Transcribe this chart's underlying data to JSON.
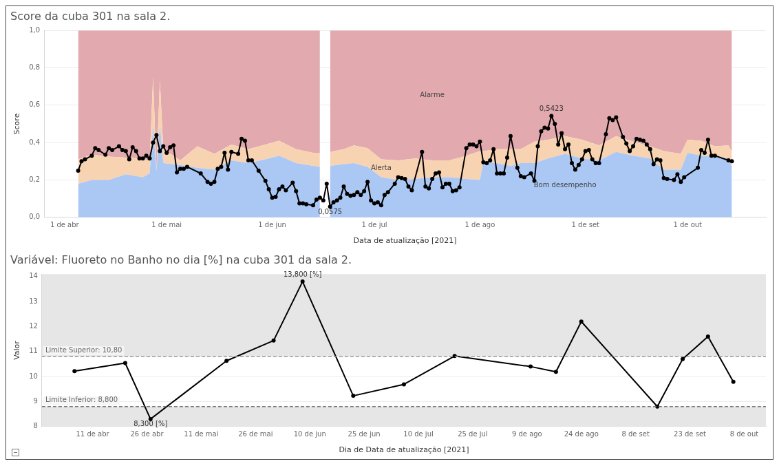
{
  "chart_data": [
    {
      "type": "area",
      "stacked": true,
      "title": "Score da cuba 301 na sala 2.",
      "xlabel": "Data de atualização [2021]",
      "ylabel": "Score",
      "xlim": [
        "2021-03-26",
        "2021-10-24"
      ],
      "xticks": [
        {
          "value": "2021-04-01",
          "label": "1 de abr"
        },
        {
          "value": "2021-05-01",
          "label": "1 de mai"
        },
        {
          "value": "2021-06-01",
          "label": "1 de jun"
        },
        {
          "value": "2021-07-01",
          "label": "1 de jul"
        },
        {
          "value": "2021-08-01",
          "label": "1 de ago"
        },
        {
          "value": "2021-09-01",
          "label": "1 de set"
        },
        {
          "value": "2021-10-01",
          "label": "1 de out"
        }
      ],
      "ylim": [
        0,
        1
      ],
      "yticks": [
        {
          "value": 0,
          "label": "0,0"
        },
        {
          "value": 0.2,
          "label": "0,2"
        },
        {
          "value": 0.4,
          "label": "0,4"
        },
        {
          "value": 0.6,
          "label": "0,6"
        },
        {
          "value": 0.8,
          "label": "0,8"
        },
        {
          "value": 1,
          "label": "1,0"
        }
      ],
      "grid": "y",
      "annotations": [
        {
          "text": "0,5423",
          "x": "2021-08-22",
          "y": 0.5423
        },
        {
          "text": "0,0575",
          "x": "2021-06-18",
          "y": 0.0575
        }
      ],
      "series": [
        {
          "name": "Bom desempenho",
          "color": "#abc7f4",
          "x": [
            "2021-04-05",
            "2021-04-09",
            "2021-04-14",
            "2021-04-19",
            "2021-04-24",
            "2021-04-26",
            "2021-04-27",
            "2021-04-28",
            "2021-04-29",
            "2021-04-30",
            "2021-05-05",
            "2021-05-10",
            "2021-05-15",
            "2021-05-20",
            "2021-05-25",
            "2021-05-30",
            "2021-06-03",
            "2021-06-08",
            "2021-06-13",
            "2021-06-15",
            "2021-06-17",
            "2021-06-18",
            "2021-06-22",
            "2021-06-25",
            "2021-06-29",
            "2021-07-03",
            "2021-07-08",
            "2021-07-13",
            "2021-07-18",
            "2021-07-23",
            "2021-07-28",
            "2021-08-01",
            "2021-08-02",
            "2021-08-06",
            "2021-08-10",
            "2021-08-13",
            "2021-08-17",
            "2021-08-21",
            "2021-08-26",
            "2021-08-31",
            "2021-09-05",
            "2021-09-10",
            "2021-09-15",
            "2021-09-20",
            "2021-09-24",
            "2021-09-29",
            "2021-10-01",
            "2021-10-05",
            "2021-10-09",
            "2021-10-13",
            "2021-10-14"
          ],
          "values": [
            0.18,
            0.2,
            0.2,
            0.23,
            0.215,
            0.235,
            0.49,
            0.25,
            0.5,
            0.29,
            0.28,
            0.265,
            0.255,
            0.305,
            0.29,
            0.31,
            0.33,
            0.29,
            0.275,
            0.27,
            null,
            0.275,
            0.285,
            0.29,
            0.27,
            0.215,
            0.2,
            0.205,
            0.215,
            0.215,
            0.205,
            0.2,
            0.3,
            0.29,
            0.275,
            0.29,
            0.29,
            0.315,
            0.34,
            0.315,
            0.305,
            0.35,
            0.33,
            0.315,
            0.255,
            0.255,
            0.345,
            0.33,
            0.325,
            0.315,
            0.27
          ]
        },
        {
          "name": "Alerta",
          "color": "#f8d3b2",
          "x": [
            "2021-04-05",
            "2021-04-09",
            "2021-04-14",
            "2021-04-19",
            "2021-04-24",
            "2021-04-26",
            "2021-04-27",
            "2021-04-28",
            "2021-04-29",
            "2021-04-30",
            "2021-05-05",
            "2021-05-10",
            "2021-05-15",
            "2021-05-20",
            "2021-05-25",
            "2021-05-30",
            "2021-06-03",
            "2021-06-08",
            "2021-06-13",
            "2021-06-15",
            "2021-06-17",
            "2021-06-18",
            "2021-06-22",
            "2021-06-25",
            "2021-06-29",
            "2021-07-03",
            "2021-07-08",
            "2021-07-13",
            "2021-07-18",
            "2021-07-23",
            "2021-07-28",
            "2021-08-01",
            "2021-08-02",
            "2021-08-06",
            "2021-08-10",
            "2021-08-13",
            "2021-08-17",
            "2021-08-21",
            "2021-08-26",
            "2021-08-31",
            "2021-09-05",
            "2021-09-10",
            "2021-09-15",
            "2021-09-20",
            "2021-09-24",
            "2021-09-29",
            "2021-10-01",
            "2021-10-05",
            "2021-10-09",
            "2021-10-13",
            "2021-10-14"
          ],
          "values": [
            0.13,
            0.135,
            0.125,
            0.09,
            0.1,
            0.065,
            0.26,
            0,
            0.235,
            0.075,
            0.025,
            0.115,
            0.085,
            0.085,
            0.075,
            0.08,
            0.08,
            0.075,
            0.07,
            0.075,
            null,
            0.075,
            0.08,
            0.095,
            0.1,
            0.095,
            0.105,
            0.11,
            0.09,
            0.09,
            0.125,
            0.155,
            0.055,
            0.075,
            0.09,
            0.075,
            0.115,
            0.1,
            0.095,
            0.1,
            0.08,
            0.085,
            0.075,
            0.065,
            0.1,
            0.085,
            0.07,
            0.08,
            0.055,
            0.07,
            0.08
          ]
        },
        {
          "name": "Alarme",
          "color": "#e2a9ae",
          "x": [
            "2021-04-05",
            "2021-04-09",
            "2021-04-14",
            "2021-04-19",
            "2021-04-24",
            "2021-04-26",
            "2021-04-27",
            "2021-04-28",
            "2021-04-29",
            "2021-04-30",
            "2021-05-05",
            "2021-05-10",
            "2021-05-15",
            "2021-05-20",
            "2021-05-25",
            "2021-05-30",
            "2021-06-03",
            "2021-06-08",
            "2021-06-13",
            "2021-06-15",
            "2021-06-17",
            "2021-06-18",
            "2021-06-22",
            "2021-06-25",
            "2021-06-29",
            "2021-07-03",
            "2021-07-08",
            "2021-07-13",
            "2021-07-18",
            "2021-07-23",
            "2021-07-28",
            "2021-08-01",
            "2021-08-02",
            "2021-08-06",
            "2021-08-10",
            "2021-08-13",
            "2021-08-17",
            "2021-08-21",
            "2021-08-26",
            "2021-08-31",
            "2021-09-05",
            "2021-09-10",
            "2021-09-15",
            "2021-09-20",
            "2021-09-24",
            "2021-09-29",
            "2021-10-01",
            "2021-10-05",
            "2021-10-09",
            "2021-10-13",
            "2021-10-14"
          ],
          "values": [
            0.69,
            0.665,
            0.675,
            0.68,
            0.685,
            0.7,
            0.25,
            0.75,
            0.265,
            0.635,
            0.695,
            0.62,
            0.66,
            0.61,
            0.635,
            0.61,
            0.59,
            0.635,
            0.655,
            0.655,
            null,
            0.65,
            0.635,
            0.615,
            0.63,
            0.69,
            0.695,
            0.685,
            0.695,
            0.695,
            0.67,
            0.645,
            0.645,
            0.635,
            0.635,
            0.635,
            0.595,
            0.585,
            0.565,
            0.585,
            0.615,
            0.565,
            0.595,
            0.62,
            0.645,
            0.66,
            0.585,
            0.59,
            0.62,
            0.615,
            0.65
          ]
        },
        {
          "type": "line",
          "color": "#000000",
          "marker": "circle",
          "x": [
            "2021-04-05",
            "2021-04-06",
            "2021-04-07",
            "2021-04-09",
            "2021-04-10",
            "2021-04-11",
            "2021-04-13",
            "2021-04-14",
            "2021-04-15",
            "2021-04-17",
            "2021-04-18",
            "2021-04-19",
            "2021-04-20",
            "2021-04-21",
            "2021-04-22",
            "2021-04-23",
            "2021-04-24",
            "2021-04-25",
            "2021-04-26",
            "2021-04-27",
            "2021-04-28",
            "2021-04-29",
            "2021-04-30",
            "2021-05-01",
            "2021-05-02",
            "2021-05-03",
            "2021-05-04",
            "2021-05-05",
            "2021-05-06",
            "2021-05-07",
            "2021-05-11",
            "2021-05-13",
            "2021-05-14",
            "2021-05-15",
            "2021-05-16",
            "2021-05-17",
            "2021-05-18",
            "2021-05-19",
            "2021-05-20",
            "2021-05-22",
            "2021-05-23",
            "2021-05-24",
            "2021-05-25",
            "2021-05-26",
            "2021-05-28",
            "2021-05-30",
            "2021-05-31",
            "2021-06-01",
            "2021-06-02",
            "2021-06-03",
            "2021-06-04",
            "2021-06-05",
            "2021-06-07",
            "2021-06-08",
            "2021-06-09",
            "2021-06-10",
            "2021-06-11",
            "2021-06-13",
            "2021-06-14",
            "2021-06-15",
            "2021-06-16",
            "2021-06-17",
            "2021-06-18",
            "2021-06-19",
            "2021-06-20",
            "2021-06-21",
            "2021-06-22",
            "2021-06-23",
            "2021-06-24",
            "2021-06-25",
            "2021-06-26",
            "2021-06-27",
            "2021-06-28",
            "2021-06-29",
            "2021-06-30",
            "2021-07-01",
            "2021-07-02",
            "2021-07-03",
            "2021-07-04",
            "2021-07-05",
            "2021-07-07",
            "2021-07-08",
            "2021-07-09",
            "2021-07-10",
            "2021-07-11",
            "2021-07-12",
            "2021-07-15",
            "2021-07-16",
            "2021-07-17",
            "2021-07-18",
            "2021-07-19",
            "2021-07-20",
            "2021-07-21",
            "2021-07-22",
            "2021-07-23",
            "2021-07-24",
            "2021-07-25",
            "2021-07-26",
            "2021-07-28",
            "2021-07-29",
            "2021-07-30",
            "2021-07-31",
            "2021-08-01",
            "2021-08-02",
            "2021-08-03",
            "2021-08-04",
            "2021-08-05",
            "2021-08-06",
            "2021-08-07",
            "2021-08-08",
            "2021-08-09",
            "2021-08-10",
            "2021-08-12",
            "2021-08-13",
            "2021-08-14",
            "2021-08-16",
            "2021-08-17",
            "2021-08-18",
            "2021-08-19",
            "2021-08-20",
            "2021-08-21",
            "2021-08-22",
            "2021-08-23",
            "2021-08-24",
            "2021-08-25",
            "2021-08-26",
            "2021-08-27",
            "2021-08-28",
            "2021-08-29",
            "2021-08-30",
            "2021-08-31",
            "2021-09-01",
            "2021-09-02",
            "2021-09-03",
            "2021-09-04",
            "2021-09-05",
            "2021-09-07",
            "2021-09-08",
            "2021-09-09",
            "2021-09-10",
            "2021-09-12",
            "2021-09-13",
            "2021-09-14",
            "2021-09-15",
            "2021-09-16",
            "2021-09-17",
            "2021-09-18",
            "2021-09-19",
            "2021-09-20",
            "2021-09-21",
            "2021-09-22",
            "2021-09-23",
            "2021-09-24",
            "2021-09-25",
            "2021-09-27",
            "2021-09-28",
            "2021-09-29",
            "2021-09-30",
            "2021-10-04",
            "2021-10-05",
            "2021-10-06",
            "2021-10-07",
            "2021-10-08",
            "2021-10-09",
            "2021-10-13",
            "2021-10-14"
          ],
          "values": [
            0.25,
            0.3,
            0.31,
            0.33,
            0.37,
            0.36,
            0.335,
            0.37,
            0.36,
            0.38,
            0.36,
            0.355,
            0.31,
            0.375,
            0.355,
            0.315,
            0.315,
            0.33,
            0.315,
            0.4,
            0.44,
            0.355,
            0.38,
            0.345,
            0.375,
            0.385,
            0.24,
            0.26,
            0.26,
            0.27,
            0.235,
            0.19,
            0.18,
            0.19,
            0.26,
            0.27,
            0.345,
            0.255,
            0.35,
            0.34,
            0.42,
            0.41,
            0.305,
            0.305,
            0.25,
            0.195,
            0.15,
            0.105,
            0.11,
            0.15,
            0.165,
            0.145,
            0.185,
            0.14,
            0.075,
            0.075,
            0.07,
            0.065,
            0.095,
            0.105,
            0.09,
            0.18,
            0.0575,
            0.08,
            0.09,
            0.105,
            0.165,
            0.125,
            0.115,
            0.12,
            0.135,
            0.12,
            0.14,
            0.19,
            0.09,
            0.075,
            0.08,
            0.065,
            0.12,
            0.135,
            0.18,
            0.215,
            0.21,
            0.205,
            0.165,
            0.145,
            0.35,
            0.165,
            0.155,
            0.205,
            0.235,
            0.24,
            0.16,
            0.18,
            0.18,
            0.14,
            0.145,
            0.16,
            0.37,
            0.39,
            0.39,
            0.38,
            0.405,
            0.295,
            0.29,
            0.305,
            0.365,
            0.235,
            0.235,
            0.235,
            0.32,
            0.435,
            0.265,
            0.22,
            0.215,
            0.235,
            0.195,
            0.38,
            0.46,
            0.48,
            0.475,
            0.5423,
            0.5,
            0.39,
            0.45,
            0.365,
            0.39,
            0.29,
            0.255,
            0.28,
            0.31,
            0.355,
            0.36,
            0.31,
            0.29,
            0.29,
            0.445,
            0.53,
            0.52,
            0.535,
            0.43,
            0.395,
            0.355,
            0.38,
            0.42,
            0.415,
            0.41,
            0.39,
            0.365,
            0.285,
            0.31,
            0.305,
            0.21,
            0.205,
            0.2,
            0.23,
            0.19,
            0.215,
            0.265,
            0.36,
            0.345,
            0.415,
            0.33,
            0.33,
            0.305,
            0.3
          ]
        }
      ]
    },
    {
      "type": "line",
      "title": "Variável: Fluoreto no Banho no dia [%] na cuba 301 da sala 2.",
      "xlabel": "Dia de Data de atualização [2021]",
      "ylabel": "Valor",
      "color": "#000000",
      "marker": "circle",
      "grid": "y",
      "x": [
        "2021-04-06",
        "2021-04-20",
        "2021-04-27",
        "2021-05-18",
        "2021-05-31",
        "2021-06-08",
        "2021-06-22",
        "2021-07-06",
        "2021-07-20",
        "2021-08-10",
        "2021-08-17",
        "2021-08-24",
        "2021-09-14",
        "2021-09-21",
        "2021-09-28",
        "2021-10-05"
      ],
      "values": [
        10.22,
        10.54,
        8.3,
        10.63,
        11.44,
        13.8,
        9.23,
        9.69,
        10.82,
        10.4,
        10.19,
        12.2,
        8.8,
        10.7,
        11.6,
        9.79
      ],
      "xlim": [
        "2021-03-28",
        "2021-10-14"
      ],
      "xticks": [
        {
          "value": "2021-04-11",
          "label": "11 de abr"
        },
        {
          "value": "2021-04-26",
          "label": "26 de abr"
        },
        {
          "value": "2021-05-11",
          "label": "11 de mai"
        },
        {
          "value": "2021-05-26",
          "label": "26 de mai"
        },
        {
          "value": "2021-06-10",
          "label": "10 de jun"
        },
        {
          "value": "2021-06-25",
          "label": "25 de jun"
        },
        {
          "value": "2021-07-10",
          "label": "10 de jul"
        },
        {
          "value": "2021-07-25",
          "label": "25 de jul"
        },
        {
          "value": "2021-08-09",
          "label": "9 de ago"
        },
        {
          "value": "2021-08-24",
          "label": "24 de ago"
        },
        {
          "value": "2021-09-08",
          "label": "8 de set"
        },
        {
          "value": "2021-09-23",
          "label": "23 de set"
        },
        {
          "value": "2021-10-08",
          "label": "8 de out"
        }
      ],
      "ylim": [
        8,
        14.1
      ],
      "yticks": [
        8,
        9,
        10,
        11,
        12,
        13,
        14
      ],
      "bands": [
        {
          "axis": "y",
          "from": 10.8,
          "to": 14.1,
          "color": "#e6e6e6"
        },
        {
          "axis": "y",
          "from": 8,
          "to": 8.8,
          "color": "#e6e6e6"
        }
      ],
      "ref_lines": [
        {
          "axis": "y",
          "value": 10.8,
          "label": "Limite Superior: 10,80",
          "color": "#999999",
          "line_style": "dashed"
        },
        {
          "axis": "y",
          "value": 8.8,
          "label": "Limite Inferior: 8,800",
          "color": "#777777",
          "line_style": "dashed"
        }
      ],
      "annotations": [
        {
          "text": "13,800 [%]",
          "x": "2021-06-08",
          "y": 13.8
        },
        {
          "text": "8,300 [%]",
          "x": "2021-04-27",
          "y": 8.3
        }
      ]
    }
  ]
}
